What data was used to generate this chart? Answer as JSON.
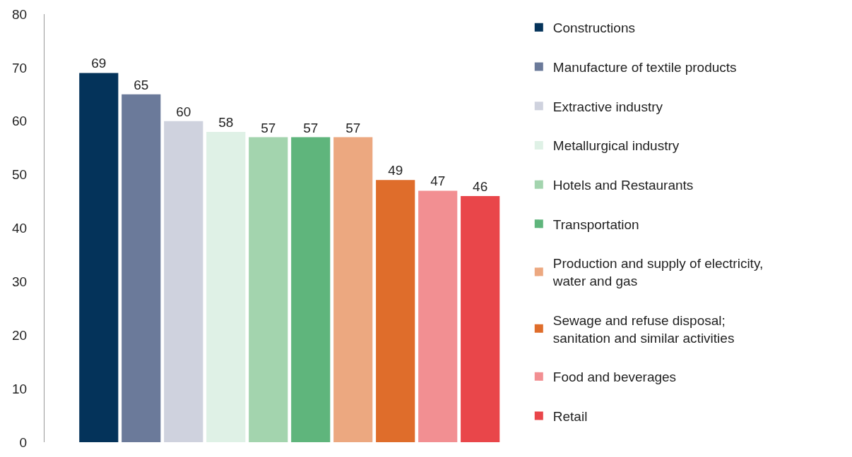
{
  "chart_data": {
    "type": "bar",
    "categories": [
      null
    ],
    "series": [
      {
        "name": "Constructions",
        "color": "#04335a",
        "values": [
          69
        ]
      },
      {
        "name": "Manufacture of textile products",
        "color": "#6b7a9a",
        "values": [
          65
        ]
      },
      {
        "name": "Extractive industry",
        "color": "#cfd2de",
        "values": [
          60
        ]
      },
      {
        "name": "Metallurgical industry",
        "color": "#dff1e6",
        "values": [
          58
        ]
      },
      {
        "name": "Hotels and Restaurants",
        "color": "#a3d4ae",
        "values": [
          57
        ]
      },
      {
        "name": "Transportation",
        "color": "#5fb57c",
        "values": [
          57
        ]
      },
      {
        "name": "Production and supply of electricity, water and gas",
        "color": "#eca880",
        "values": [
          57
        ]
      },
      {
        "name": "Sewage and refuse disposal; sanitation and similar activities",
        "color": "#df6d2b",
        "values": [
          49
        ]
      },
      {
        "name": "Food and beverages",
        "color": "#f28f92",
        "values": [
          47
        ]
      },
      {
        "name": "Retail",
        "color": "#e9464a",
        "values": [
          46
        ]
      }
    ],
    "ylim": [
      0,
      80
    ],
    "yticks": [
      0,
      10,
      20,
      30,
      40,
      50,
      60,
      70,
      80
    ],
    "data_labels": true,
    "legend": "right",
    "tick_labels": "y"
  }
}
